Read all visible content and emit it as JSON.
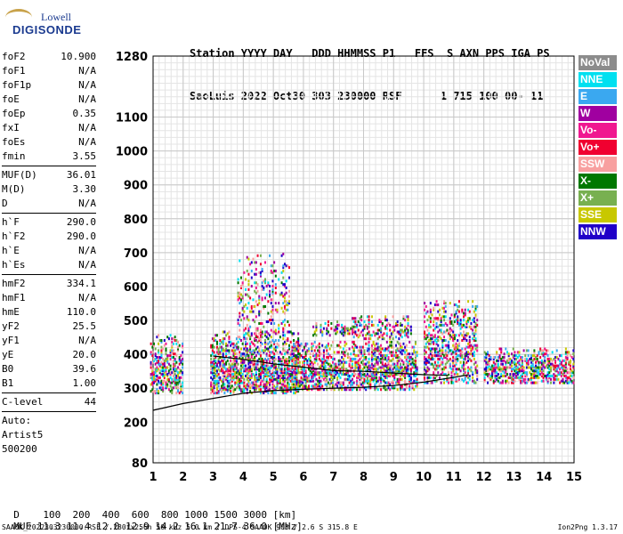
{
  "logo": {
    "top": "Lowell",
    "main": "DIGISONDE"
  },
  "header": {
    "line1": "Station YYYY DAY   DDD HHMMSS P1   FFS  S AXN PPS IGA PS",
    "line2": "SaoLuis 2022 Oct30 303 230000 RSF      1 715 100 00- 11"
  },
  "params": {
    "group1": [
      {
        "name": "foF2",
        "value": "10.900"
      },
      {
        "name": "foF1",
        "value": "N/A"
      },
      {
        "name": "foF1p",
        "value": "N/A"
      },
      {
        "name": "foE",
        "value": "N/A"
      },
      {
        "name": "foEp",
        "value": "0.35"
      },
      {
        "name": "fxI",
        "value": "N/A"
      },
      {
        "name": "foEs",
        "value": "N/A"
      },
      {
        "name": "fmin",
        "value": "3.55"
      }
    ],
    "group2": [
      {
        "name": "MUF(D)",
        "value": "36.01"
      },
      {
        "name": "M(D)",
        "value": "3.30"
      },
      {
        "name": "D",
        "value": "N/A"
      }
    ],
    "group3": [
      {
        "name": "h`F",
        "value": "290.0"
      },
      {
        "name": "h`F2",
        "value": "290.0"
      },
      {
        "name": "h`E",
        "value": "N/A"
      },
      {
        "name": "h`Es",
        "value": "N/A"
      }
    ],
    "group4": [
      {
        "name": "hmF2",
        "value": "334.1"
      },
      {
        "name": "hmF1",
        "value": "N/A"
      },
      {
        "name": "hmE",
        "value": "110.0"
      },
      {
        "name": "yF2",
        "value": "25.5"
      },
      {
        "name": "yF1",
        "value": "N/A"
      },
      {
        "name": "yE",
        "value": "20.0"
      },
      {
        "name": "B0",
        "value": "39.6"
      },
      {
        "name": "B1",
        "value": "1.00"
      }
    ],
    "clevel": {
      "name": "C-level",
      "value": "44"
    },
    "auto": [
      "Auto:",
      "Artist5",
      "500200"
    ]
  },
  "legend": [
    {
      "label": "NoVal",
      "color": "#8c8c8c"
    },
    {
      "label": "NNE",
      "color": "#00e0f0"
    },
    {
      "label": "E",
      "color": "#3aa8f0"
    },
    {
      "label": "W",
      "color": "#a000a0"
    },
    {
      "label": "Vo-",
      "color": "#f01890"
    },
    {
      "label": "Vo+",
      "color": "#f00030"
    },
    {
      "label": "SSW",
      "color": "#f8a0a0"
    },
    {
      "label": "X-",
      "color": "#007800"
    },
    {
      "label": "X+",
      "color": "#78b050"
    },
    {
      "label": "SSE",
      "color": "#c8c800"
    },
    {
      "label": "NNW",
      "color": "#2000c8"
    }
  ],
  "chart_data": {
    "type": "scatter",
    "xlabel": "",
    "ylabel": "",
    "xlim": [
      1,
      15
    ],
    "ylim": [
      80,
      1280
    ],
    "xticks": [
      1,
      2,
      3,
      4,
      5,
      6,
      7,
      8,
      9,
      10,
      11,
      12,
      13,
      14,
      15
    ],
    "yticks": [
      80,
      200,
      300,
      400,
      500,
      600,
      700,
      800,
      900,
      1000,
      1100,
      1280
    ],
    "grid": true,
    "clusters": [
      {
        "x": [
          0.9,
          2.0
        ],
        "y": [
          290,
          460
        ],
        "density": 0.55
      },
      {
        "x": [
          2.9,
          5.8
        ],
        "y": [
          290,
          470
        ],
        "density": 0.65
      },
      {
        "x": [
          3.8,
          5.5
        ],
        "y": [
          460,
          700
        ],
        "density": 0.18
      },
      {
        "x": [
          5.6,
          9.8
        ],
        "y": [
          300,
          440
        ],
        "density": 0.6
      },
      {
        "x": [
          6.3,
          7.6
        ],
        "y": [
          460,
          500
        ],
        "density": 0.45
      },
      {
        "x": [
          7.6,
          9.6
        ],
        "y": [
          450,
          520
        ],
        "density": 0.35
      },
      {
        "x": [
          10.0,
          11.8
        ],
        "y": [
          320,
          560
        ],
        "density": 0.45
      },
      {
        "x": [
          12.0,
          15.0
        ],
        "y": [
          320,
          420
        ],
        "density": 0.6
      }
    ],
    "series": [
      {
        "name": "",
        "x": [
          1,
          2,
          3,
          4,
          5,
          6,
          7,
          8,
          9,
          10,
          11,
          11.5
        ],
        "y": [
          235,
          255,
          270,
          285,
          293,
          297,
          300,
          303,
          308,
          318,
          332,
          340
        ]
      },
      {
        "name": "",
        "x": [
          3,
          4,
          5,
          6,
          7,
          8,
          9,
          10,
          10.8
        ],
        "y": [
          395,
          385,
          372,
          362,
          352,
          350,
          345,
          340,
          338
        ]
      }
    ]
  },
  "distance_row": {
    "label": "D",
    "values": "    100  200  400  600  800 1000 1500 3000 [km]"
  },
  "muf_row": {
    "label": "MUF",
    "values": " 11.3 11.4 12.0 12.9 14.2 16.1 21.7 36.0 [MHz]"
  },
  "footer": "SAA0K_2022303230000.RSF / 280fx256h 50 kHz 5.0 km / DPS-4 SAA0K 903 / 2.6 S 315.8 E",
  "version": "Ion2Png 1.3.17"
}
